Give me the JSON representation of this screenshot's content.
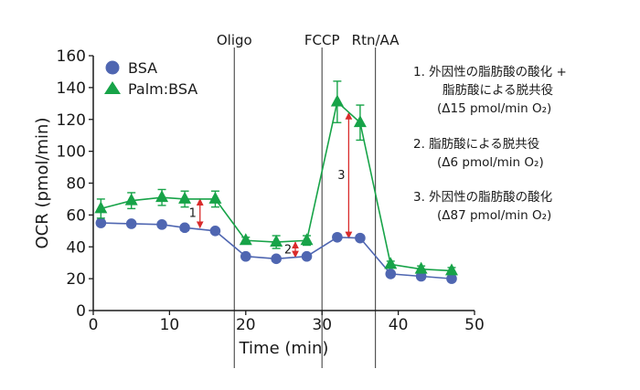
{
  "chart_data": {
    "type": "line",
    "xlabel": "Time (min)",
    "ylabel": "OCR (pmol/min)",
    "xlim": [
      0,
      50
    ],
    "ylim": [
      0,
      160
    ],
    "x_ticks": [
      "0",
      "10",
      "20",
      "30",
      "40",
      "50"
    ],
    "y_ticks": [
      "0",
      "20",
      "40",
      "60",
      "80",
      "100",
      "120",
      "140",
      "160"
    ],
    "grid": false,
    "legend_position": "top-left",
    "x": [
      1,
      5,
      9,
      12,
      16,
      20,
      24,
      28,
      32,
      35,
      39,
      43,
      47
    ],
    "series": [
      {
        "name": "BSA",
        "marker": "circle",
        "color": "#4f66b1",
        "values": [
          55,
          54.5,
          54,
          52,
          50,
          34,
          32.5,
          34,
          46,
          45.5,
          23,
          21.5,
          20
        ]
      },
      {
        "name": "Palm:BSA",
        "marker": "triangle",
        "color": "#17a348",
        "values": [
          64,
          69,
          71,
          70,
          70,
          44,
          43,
          44,
          131,
          118,
          29,
          26,
          25
        ],
        "errors": [
          6,
          5,
          5,
          5,
          5,
          2,
          4,
          3,
          13,
          11,
          2,
          2,
          2
        ]
      }
    ],
    "injections": [
      {
        "label": "Oligo",
        "x": 18.5
      },
      {
        "label": "FCCP",
        "x": 30
      },
      {
        "label": "Rtn/AA",
        "x": 37
      }
    ],
    "arrows": [
      {
        "label": "1",
        "x": 14,
        "from": 52,
        "to": 70
      },
      {
        "label": "2",
        "x": 26.5,
        "from": 33.5,
        "to": 43
      },
      {
        "label": "3",
        "x": 33.5,
        "from": 45.5,
        "to": 124
      }
    ],
    "annotations": [
      {
        "lines": [
          "1. 外因性の脂肪酸の酸化 +",
          "脂肪酸による脱共役",
          "(Δ15 pmol/min O₂)"
        ]
      },
      {
        "lines": [
          "2. 脂肪酸による脱共役",
          "(Δ6 pmol/min O₂)"
        ]
      },
      {
        "lines": [
          "3. 外因性の脂肪酸の酸化",
          "(Δ87 pmol/min O₂)"
        ]
      }
    ],
    "colors": {
      "axis": "#1a1a1a",
      "vline": "#555555",
      "arrow": "#d92b2b"
    }
  }
}
